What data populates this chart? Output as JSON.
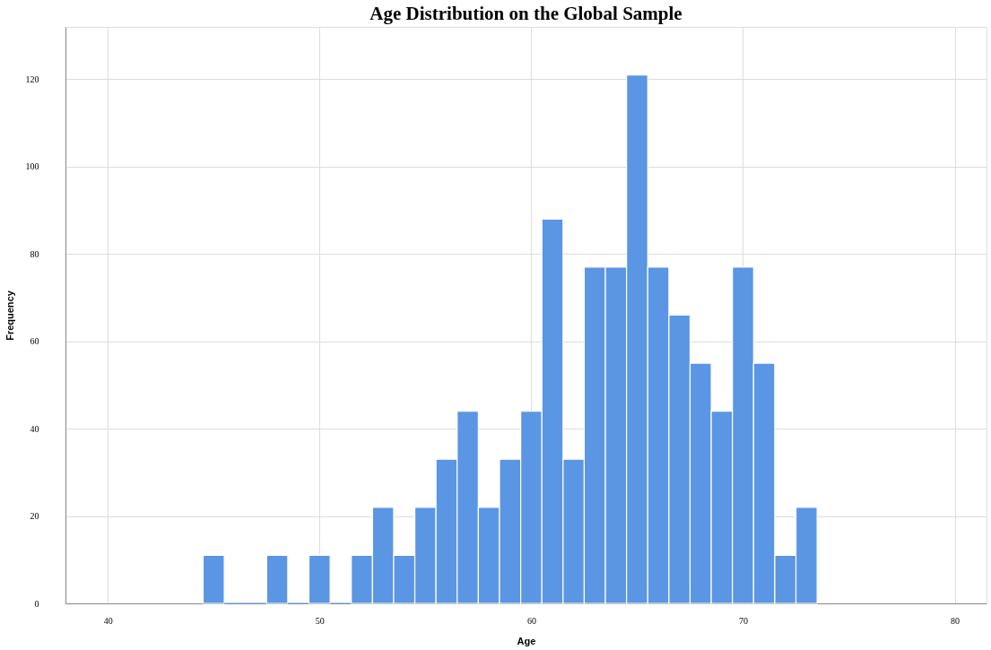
{
  "chart_data": {
    "type": "histogram",
    "title": "Age Distribution on the Global Sample",
    "xlabel": "Age",
    "ylabel": "Frequency",
    "bins": [
      44.5,
      45.5,
      46.5,
      47.5,
      48.5,
      49.5,
      50.5,
      51.5,
      52.5,
      53.5,
      54.5,
      55.5,
      56.5,
      57.5,
      58.5,
      59.5,
      60.5,
      61.5,
      62.5,
      63.5,
      64.5,
      65.5,
      66.5,
      67.5,
      68.5,
      69.5,
      70.5,
      71.5,
      72.5,
      73.5
    ],
    "values": [
      11,
      0,
      0,
      11,
      0,
      11,
      0,
      11,
      22,
      11,
      22,
      33,
      44,
      22,
      33,
      44,
      88,
      33,
      77,
      77,
      121,
      77,
      66,
      55,
      44,
      77,
      55,
      11,
      22
    ],
    "color": "#5a96e3",
    "xlim": [
      38,
      81.5
    ],
    "xticks": [
      40,
      50,
      60,
      70,
      80
    ],
    "ylim": [
      0,
      132
    ],
    "yticks": [
      0,
      20,
      40,
      60,
      80,
      100,
      120
    ],
    "grid": true
  }
}
